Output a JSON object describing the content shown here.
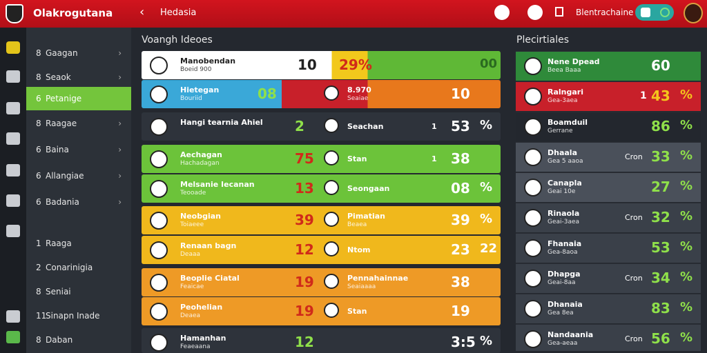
{
  "header": {
    "app_name": "Olakrogutana",
    "page": "Hedasia",
    "account": "Blentrachaine"
  },
  "menu": [
    {
      "num": "8",
      "label": "Gaagan"
    },
    {
      "num": "8",
      "label": "Seaok"
    },
    {
      "num": "6",
      "label": "Petanige"
    },
    {
      "num": "8",
      "label": "Raagae"
    },
    {
      "num": "6",
      "label": "Baina"
    },
    {
      "num": "6",
      "label": "Allangiae"
    },
    {
      "num": "6",
      "label": "Badania"
    },
    {
      "num": "1",
      "label": "Raaga"
    },
    {
      "num": "2",
      "label": "Conarinigia"
    },
    {
      "num": "8",
      "label": "Seniai"
    },
    {
      "num": "11",
      "label": "Sinapn Inade"
    },
    {
      "num": "8",
      "label": "Daban"
    }
  ],
  "main": {
    "title": "Voangh Ideoes",
    "rows": [
      {
        "name": "Manobendan",
        "sub": "Boeid 900",
        "score": "10",
        "score2": "29%",
        "pct": "00"
      },
      {
        "name": "Hietegan",
        "sub": "Bouriid",
        "score": "08",
        "name2": "8.970",
        "sub2": "Seaiae",
        "score2": "10"
      },
      {
        "name": "Hangi tearnia Ahiel",
        "score": "2",
        "name2": "Seachan",
        "num": "1",
        "score2": "53",
        "pct": "%"
      },
      {
        "name": "Aechagan",
        "sub": "Hachadagan",
        "score": "75",
        "name2": "Stan",
        "num": "1",
        "score2": "38"
      },
      {
        "name": "Melsanie Iecanan",
        "sub": "Teooade",
        "score": "13",
        "name2": "Seongaan",
        "score2": "08",
        "pct": "%"
      },
      {
        "name": "Neobgian",
        "sub": "Toiaeee",
        "score": "39",
        "name2": "Pimatian",
        "sub2": "Beaea",
        "score2": "39",
        "pct": "%"
      },
      {
        "name": "Renaan bagn",
        "sub": "Deaaa",
        "score": "12",
        "name2": "Ntom",
        "score2": "23",
        "pct": "22"
      },
      {
        "name": "Beoplie Ciatal",
        "sub": "Feaicae",
        "score": "19",
        "name2": "Pennahainnae",
        "sub2": "Seaiaaaa",
        "score2": "38"
      },
      {
        "name": "Peohelian",
        "sub": "Deaea",
        "score": "19",
        "name2": "Stan",
        "score2": "19"
      },
      {
        "name": "Hamanhan",
        "sub": "Feaeaana",
        "score": "12",
        "score2": "3:5",
        "pct": "%"
      }
    ]
  },
  "side": {
    "title": "Plecirtiales",
    "rows": [
      {
        "name": "Nene Dpead",
        "sub": "Beea Baaa",
        "score": "60"
      },
      {
        "name": "Ralngari",
        "sub": "Gea-3aea",
        "num": "1",
        "score": "43",
        "pct": "%"
      },
      {
        "name": "Boamduil",
        "sub": "Gerrane",
        "score": "86",
        "pct": "%"
      },
      {
        "name": "Dhaala",
        "sub": "Gea 5 aaoa",
        "label": "Cron",
        "score": "33",
        "pct": "%"
      },
      {
        "name": "Canapla",
        "sub": "Geai 10e",
        "score": "27",
        "pct": "%"
      },
      {
        "name": "Rinaola",
        "sub": "Geai-3aea",
        "label": "Cron",
        "score": "32",
        "pct": "%"
      },
      {
        "name": "Fhanaia",
        "sub": "Gea-8aoa",
        "score": "53",
        "pct": "%"
      },
      {
        "name": "Dhapga",
        "sub": "Geai-8aa",
        "label": "Cron",
        "score": "34",
        "pct": "%"
      },
      {
        "name": "Dhanaia",
        "sub": "Gea 8ea",
        "score": "83",
        "pct": "%"
      },
      {
        "name": "Nandaania",
        "sub": "Gea-aeaa",
        "label": "Cron",
        "score": "56",
        "pct": "%"
      }
    ]
  }
}
